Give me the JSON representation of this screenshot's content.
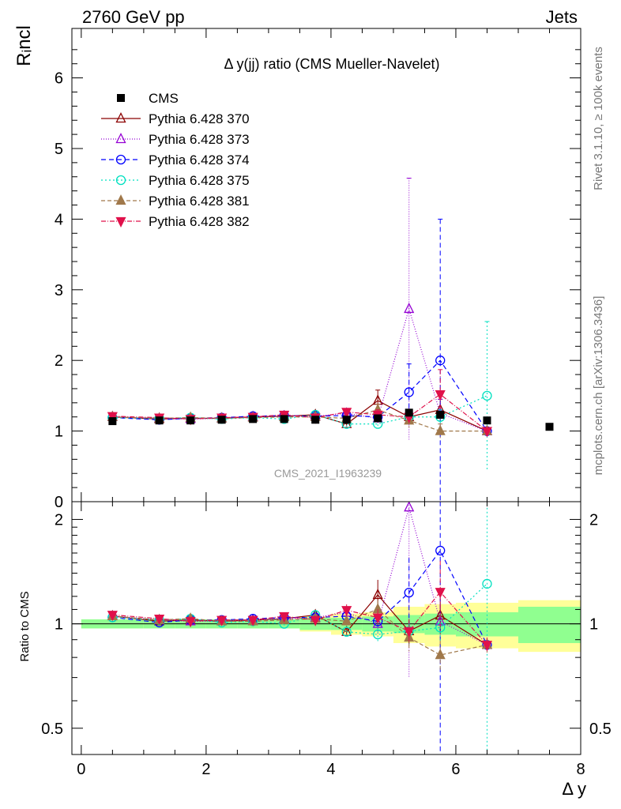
{
  "header": {
    "left": "2760 GeV pp",
    "right": "Jets"
  },
  "side_text": {
    "rivet": "Rivet 3.1.10, ≥ 100k events",
    "mcplots": "mcplots.cern.ch [arXiv:1306.3436]"
  },
  "colors": {
    "CMS": "#000000",
    "p370": "#8b0000",
    "p373": "#9400d3",
    "p374": "#0000ff",
    "p375": "#00e0c0",
    "p381": "#a0784a",
    "p382": "#e0104a",
    "band_green": "#90ff90",
    "band_yellow": "#ffff99"
  },
  "chart_data": {
    "type": "line",
    "title": "Δ y(jj) ratio (CMS Mueller-Navelet)",
    "watermark": "CMS_2021_I1963239",
    "ylabel": "Rᵢncl",
    "ylabel_ratio": "Ratio to CMS",
    "xlabel": "Δ y",
    "xlim": [
      -0.15,
      8.0
    ],
    "ylim": [
      0,
      6.7
    ],
    "ratio_ylim": [
      0.42,
      2.25
    ],
    "ratio_log": true,
    "x_ticks": [
      0,
      2,
      4,
      6,
      8
    ],
    "y_ticks": [
      0,
      1,
      2,
      3,
      4,
      5,
      6
    ],
    "ratio_ticks": [
      0.5,
      1,
      2
    ],
    "legend_position": "top-left",
    "data": {
      "name": "CMS",
      "x": [
        0.5,
        1.25,
        1.75,
        2.25,
        2.75,
        3.25,
        3.75,
        4.25,
        4.75,
        5.25,
        5.75,
        6.5,
        7.5
      ],
      "y": [
        1.14,
        1.15,
        1.15,
        1.16,
        1.17,
        1.17,
        1.16,
        1.16,
        1.18,
        1.26,
        1.23,
        1.15,
        1.06
      ]
    },
    "band": {
      "x_edges": [
        0.0,
        1.0,
        1.5,
        2.0,
        2.5,
        3.0,
        3.5,
        4.0,
        4.5,
        5.0,
        5.5,
        6.0,
        7.0,
        8.0
      ],
      "green": [
        0.03,
        0.03,
        0.03,
        0.03,
        0.03,
        0.03,
        0.04,
        0.04,
        0.05,
        0.06,
        0.07,
        0.08,
        0.12
      ],
      "yellow": [
        0.03,
        0.03,
        0.03,
        0.03,
        0.03,
        0.03,
        0.05,
        0.07,
        0.08,
        0.12,
        0.14,
        0.15,
        0.17
      ]
    },
    "series": [
      {
        "name": "Pythia 6.428 370",
        "key": "p370",
        "marker": "triangle-open",
        "dash": "",
        "x": [
          0.5,
          1.25,
          1.75,
          2.25,
          2.75,
          3.25,
          3.75,
          4.25,
          4.75,
          5.25,
          5.75,
          6.5
        ],
        "y": [
          1.2,
          1.17,
          1.18,
          1.18,
          1.2,
          1.21,
          1.23,
          1.1,
          1.43,
          1.2,
          1.3,
          1.0
        ],
        "err": [
          0.02,
          0.02,
          0.02,
          0.02,
          0.02,
          0.03,
          0.03,
          0.03,
          0.15,
          0.1,
          0.15,
          0.05
        ]
      },
      {
        "name": "Pythia 6.428 373",
        "key": "p373",
        "marker": "triangle-open",
        "dash": "1,2",
        "x": [
          0.5,
          1.25,
          1.75,
          2.25,
          2.75,
          3.25,
          3.75,
          4.25,
          4.75,
          5.25,
          5.75,
          6.5
        ],
        "y": [
          1.2,
          1.18,
          1.17,
          1.18,
          1.2,
          1.21,
          1.21,
          1.25,
          1.18,
          2.73,
          1.25,
          1.0
        ],
        "err": [
          0.02,
          0.02,
          0.02,
          0.02,
          0.02,
          0.03,
          0.03,
          0.05,
          0.08,
          1.85,
          0.2,
          0.05
        ]
      },
      {
        "name": "Pythia 6.428 374",
        "key": "p374",
        "marker": "circle-open",
        "dash": "6,4",
        "x": [
          0.5,
          1.25,
          1.75,
          2.25,
          2.75,
          3.25,
          3.75,
          4.25,
          4.75,
          5.25,
          5.75,
          6.5
        ],
        "y": [
          1.19,
          1.16,
          1.18,
          1.19,
          1.21,
          1.22,
          1.21,
          1.22,
          1.2,
          1.55,
          2.0,
          1.0
        ],
        "err": [
          0.02,
          0.02,
          0.02,
          0.02,
          0.02,
          0.03,
          0.03,
          0.05,
          0.06,
          0.4,
          2.0,
          0.05
        ]
      },
      {
        "name": "Pythia 6.428 375",
        "key": "p375",
        "marker": "circle-open",
        "dash": "2,3",
        "x": [
          0.5,
          1.25,
          1.75,
          2.25,
          2.75,
          3.25,
          3.75,
          4.25,
          4.75,
          5.25,
          5.75,
          6.5
        ],
        "y": [
          1.19,
          1.18,
          1.19,
          1.17,
          1.19,
          1.17,
          1.23,
          1.1,
          1.1,
          1.2,
          1.2,
          1.5
        ],
        "err": [
          0.02,
          0.02,
          0.02,
          0.02,
          0.02,
          0.03,
          0.03,
          0.04,
          0.05,
          0.1,
          0.1,
          1.05
        ]
      },
      {
        "name": "Pythia 6.428 381",
        "key": "p381",
        "marker": "triangle-filled",
        "dash": "5,3",
        "x": [
          0.5,
          1.25,
          1.75,
          2.25,
          2.75,
          3.25,
          3.75,
          4.25,
          4.75,
          5.25,
          5.75,
          6.5
        ],
        "y": [
          1.2,
          1.18,
          1.19,
          1.18,
          1.19,
          1.2,
          1.2,
          1.18,
          1.3,
          1.15,
          1.0,
          1.0
        ],
        "err": [
          0.02,
          0.02,
          0.02,
          0.02,
          0.02,
          0.03,
          0.03,
          0.05,
          0.08,
          0.1,
          0.1,
          0.05
        ]
      },
      {
        "name": "Pythia 6.428 382",
        "key": "p382",
        "marker": "triangle-down-filled",
        "dash": "6,2,1,2",
        "x": [
          0.5,
          1.25,
          1.75,
          2.25,
          2.75,
          3.25,
          3.75,
          4.25,
          4.75,
          5.25,
          5.75,
          6.5
        ],
        "y": [
          1.21,
          1.19,
          1.17,
          1.19,
          1.2,
          1.23,
          1.19,
          1.27,
          1.23,
          1.2,
          1.52,
          1.0
        ],
        "err": [
          0.02,
          0.02,
          0.02,
          0.02,
          0.02,
          0.03,
          0.03,
          0.05,
          0.07,
          0.1,
          0.35,
          0.05
        ]
      }
    ]
  }
}
